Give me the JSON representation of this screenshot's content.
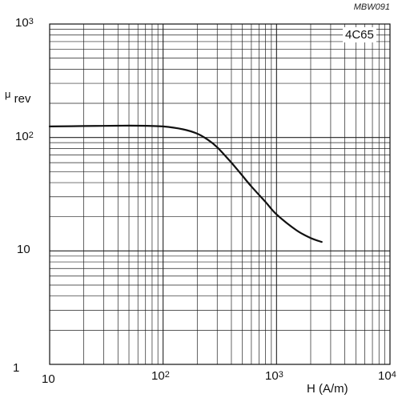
{
  "chart_data": {
    "type": "line",
    "figure_code": "MBW091",
    "material_label": "4C65",
    "ylabel": {
      "symbol": "μ",
      "subscript": "rev"
    },
    "xlabel": "H  (A/m)",
    "x_scale": "log",
    "y_scale": "log",
    "xlim": [
      10,
      10000
    ],
    "ylim": [
      1,
      1000
    ],
    "grid": true,
    "x_ticks": [
      {
        "base": "10",
        "exp": ""
      },
      {
        "base": "10",
        "exp": "2"
      },
      {
        "base": "10",
        "exp": "3"
      },
      {
        "base": "10",
        "exp": "4"
      }
    ],
    "y_ticks": [
      {
        "base": "1",
        "exp": ""
      },
      {
        "base": "10",
        "exp": ""
      },
      {
        "base": "10",
        "exp": "2"
      },
      {
        "base": "10",
        "exp": "3"
      }
    ],
    "series": [
      {
        "x": [
          10,
          20,
          40,
          60,
          100,
          150,
          200,
          250,
          300,
          400,
          500,
          600,
          800,
          1000,
          1500,
          2000,
          2500
        ],
        "y": [
          125,
          126,
          127,
          127,
          125,
          118,
          108,
          95,
          82,
          60,
          46,
          37,
          27,
          21,
          15.2,
          13.0,
          12.0
        ]
      }
    ]
  }
}
